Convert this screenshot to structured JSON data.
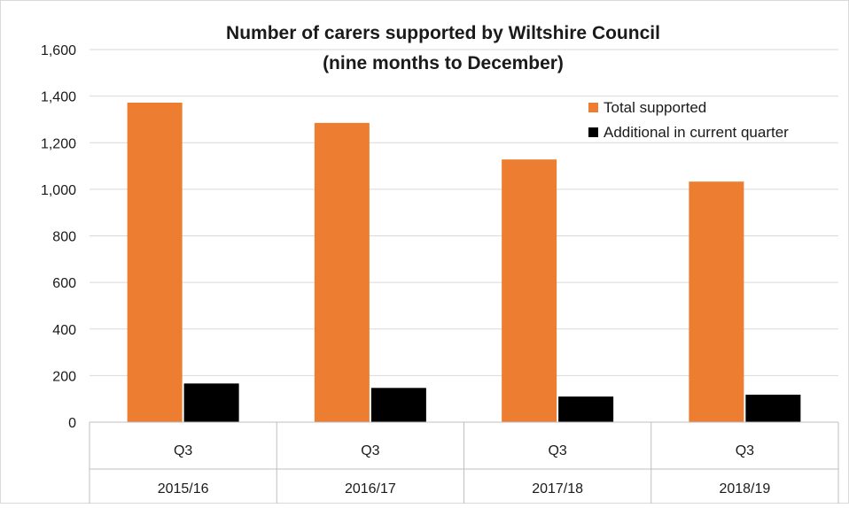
{
  "chart_data": {
    "type": "bar",
    "title": "Number of carers supported by Wiltshire Council",
    "subtitle": "(nine months to December)",
    "categories": [
      {
        "quarter": "Q3",
        "year": "2015/16"
      },
      {
        "quarter": "Q3",
        "year": "2016/17"
      },
      {
        "quarter": "Q3",
        "year": "2017/18"
      },
      {
        "quarter": "Q3",
        "year": "2018/19"
      }
    ],
    "series": [
      {
        "name": "Total supported",
        "color": "#ED7D31",
        "values": [
          1372,
          1285,
          1128,
          1033
        ]
      },
      {
        "name": "Additional in current quarter",
        "color": "#000000",
        "values": [
          166,
          147,
          110,
          118
        ]
      }
    ],
    "y_ticks": [
      "0",
      "200",
      "400",
      "600",
      "800",
      "1,000",
      "1,200",
      "1,400",
      "1,600"
    ],
    "ylim": [
      0,
      1600
    ],
    "grid": true,
    "legend_position": "top-right"
  }
}
